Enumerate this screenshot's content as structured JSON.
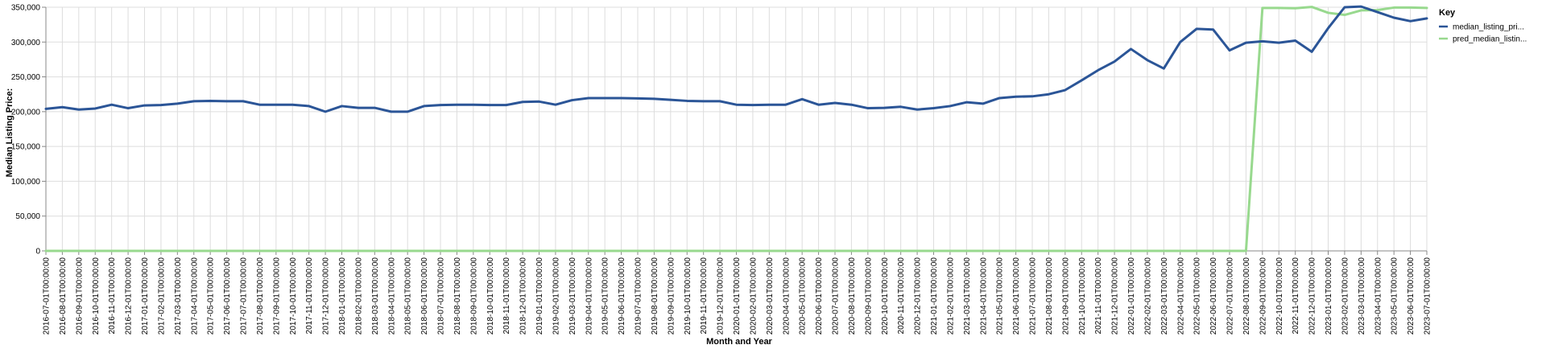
{
  "chart_data": {
    "type": "line",
    "xlabel": "Month and Year",
    "ylabel": "Median Listing Price:",
    "ylim": [
      0,
      350000
    ],
    "y_ticks": [
      0,
      50000,
      100000,
      150000,
      200000,
      250000,
      300000,
      350000
    ],
    "y_tick_labels": [
      "0",
      "50,000",
      "100,000",
      "150,000",
      "200,000",
      "250,000",
      "300,000",
      "350,000"
    ],
    "grid": true,
    "legend": {
      "title": "Key",
      "placement": "top-right"
    },
    "x": [
      "2016-07-01T00:00:00",
      "2016-08-01T00:00:00",
      "2016-09-01T00:00:00",
      "2016-10-01T00:00:00",
      "2016-11-01T00:00:00",
      "2016-12-01T00:00:00",
      "2017-01-01T00:00:00",
      "2017-02-01T00:00:00",
      "2017-03-01T00:00:00",
      "2017-04-01T00:00:00",
      "2017-05-01T00:00:00",
      "2017-06-01T00:00:00",
      "2017-07-01T00:00:00",
      "2017-08-01T00:00:00",
      "2017-09-01T00:00:00",
      "2017-10-01T00:00:00",
      "2017-11-01T00:00:00",
      "2017-12-01T00:00:00",
      "2018-01-01T00:00:00",
      "2018-02-01T00:00:00",
      "2018-03-01T00:00:00",
      "2018-04-01T00:00:00",
      "2018-05-01T00:00:00",
      "2018-06-01T00:00:00",
      "2018-07-01T00:00:00",
      "2018-08-01T00:00:00",
      "2018-09-01T00:00:00",
      "2018-10-01T00:00:00",
      "2018-11-01T00:00:00",
      "2018-12-01T00:00:00",
      "2019-01-01T00:00:00",
      "2019-02-01T00:00:00",
      "2019-03-01T00:00:00",
      "2019-04-01T00:00:00",
      "2019-05-01T00:00:00",
      "2019-06-01T00:00:00",
      "2019-07-01T00:00:00",
      "2019-08-01T00:00:00",
      "2019-09-01T00:00:00",
      "2019-10-01T00:00:00",
      "2019-11-01T00:00:00",
      "2019-12-01T00:00:00",
      "2020-01-01T00:00:00",
      "2020-02-01T00:00:00",
      "2020-03-01T00:00:00",
      "2020-04-01T00:00:00",
      "2020-05-01T00:00:00",
      "2020-06-01T00:00:00",
      "2020-07-01T00:00:00",
      "2020-08-01T00:00:00",
      "2020-09-01T00:00:00",
      "2020-10-01T00:00:00",
      "2020-11-01T00:00:00",
      "2020-12-01T00:00:00",
      "2021-01-01T00:00:00",
      "2021-02-01T00:00:00",
      "2021-03-01T00:00:00",
      "2021-04-01T00:00:00",
      "2021-05-01T00:00:00",
      "2021-06-01T00:00:00",
      "2021-07-01T00:00:00",
      "2021-08-01T00:00:00",
      "2021-09-01T00:00:00",
      "2021-10-01T00:00:00",
      "2021-11-01T00:00:00",
      "2021-12-01T00:00:00",
      "2022-01-01T00:00:00",
      "2022-02-01T00:00:00",
      "2022-03-01T00:00:00",
      "2022-04-01T00:00:00",
      "2022-05-01T00:00:00",
      "2022-06-01T00:00:00",
      "2022-07-01T00:00:00",
      "2022-08-01T00:00:00",
      "2022-09-01T00:00:00",
      "2022-10-01T00:00:00",
      "2022-11-01T00:00:00",
      "2022-12-01T00:00:00",
      "2023-01-01T00:00:00",
      "2023-02-01T00:00:00",
      "2023-03-01T00:00:00",
      "2023-04-01T00:00:00",
      "2023-05-01T00:00:00",
      "2023-06-01T00:00:00",
      "2023-07-01T00:00:00"
    ],
    "series": [
      {
        "name": "median_listing_pri...",
        "color": "#2b5597",
        "values": [
          204000,
          206500,
          203000,
          204500,
          210000,
          205000,
          209000,
          209500,
          211500,
          215000,
          215500,
          215000,
          215000,
          210000,
          210000,
          210000,
          208000,
          200000,
          208000,
          205500,
          205500,
          200000,
          200000,
          208000,
          209500,
          210000,
          210000,
          209500,
          209500,
          214000,
          214500,
          210000,
          216500,
          219500,
          219500,
          219500,
          219000,
          218500,
          217000,
          215500,
          215000,
          215000,
          210000,
          209500,
          210000,
          210000,
          218000,
          210000,
          212500,
          210000,
          205000,
          205500,
          207000,
          203000,
          205000,
          208000,
          213500,
          211500,
          219500,
          221500,
          222000,
          225000,
          231000,
          245000,
          259500,
          272000,
          290000,
          274000,
          262000,
          300000,
          319000,
          318000,
          288000,
          299000,
          301000,
          299000,
          302000,
          286000,
          320000,
          350000,
          351000,
          343000,
          335000,
          330000,
          334000
        ]
      },
      {
        "name": "pred_median_listin...",
        "color": "#98d98e",
        "values": [
          0,
          0,
          0,
          0,
          0,
          0,
          0,
          0,
          0,
          0,
          0,
          0,
          0,
          0,
          0,
          0,
          0,
          0,
          0,
          0,
          0,
          0,
          0,
          0,
          0,
          0,
          0,
          0,
          0,
          0,
          0,
          0,
          0,
          0,
          0,
          0,
          0,
          0,
          0,
          0,
          0,
          0,
          0,
          0,
          0,
          0,
          0,
          0,
          0,
          0,
          0,
          0,
          0,
          0,
          0,
          0,
          0,
          0,
          0,
          0,
          0,
          0,
          0,
          0,
          0,
          0,
          0,
          0,
          0,
          0,
          0,
          0,
          0,
          0,
          349000,
          349000,
          348500,
          350500,
          342000,
          339000,
          345500,
          346000,
          349500,
          349500,
          349000
        ]
      }
    ]
  }
}
